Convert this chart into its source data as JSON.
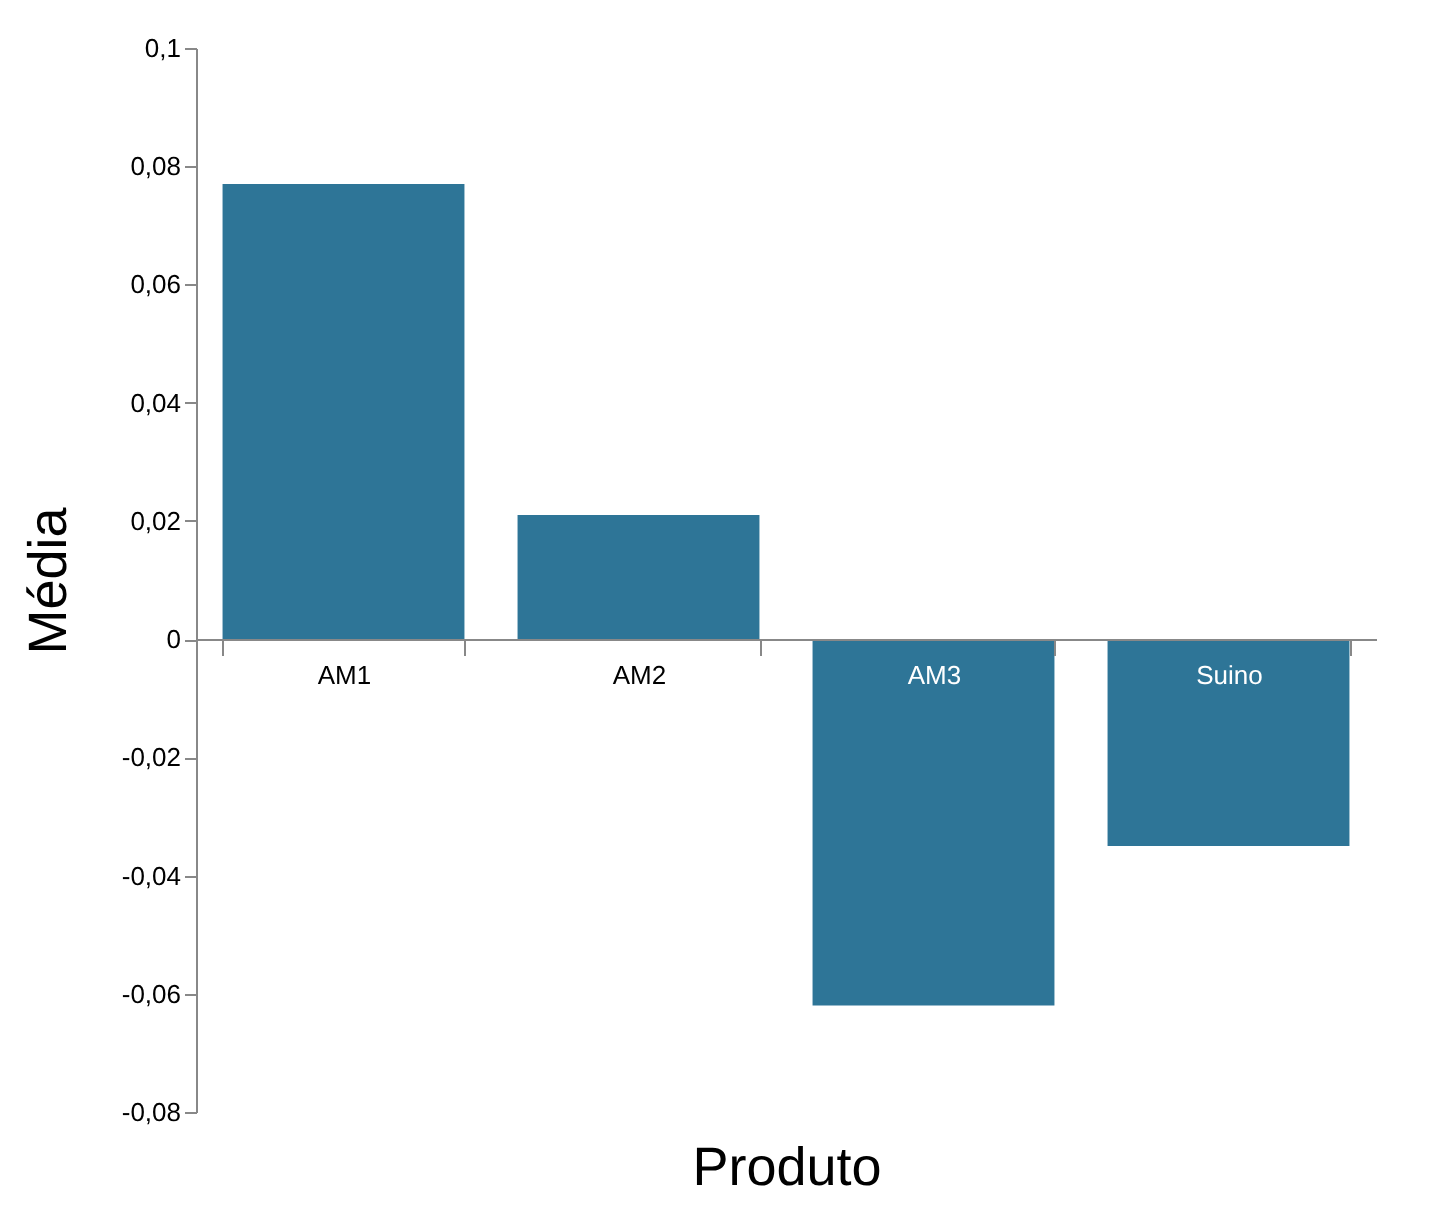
{
  "chart_data": {
    "type": "bar",
    "xlabel": "Produto",
    "ylabel": "Média",
    "categories": [
      "AM1",
      "AM2",
      "AM3",
      "Suino"
    ],
    "values": [
      0.077,
      0.021,
      -0.062,
      -0.035
    ],
    "color": "#2e7597",
    "ylim": [
      -0.08,
      0.1
    ],
    "yticks": [
      {
        "value": -0.08,
        "label": "-0,08"
      },
      {
        "value": -0.06,
        "label": "-0,06"
      },
      {
        "value": -0.04,
        "label": "-0,04"
      },
      {
        "value": -0.02,
        "label": "-0,02"
      },
      {
        "value": 0,
        "label": "0"
      },
      {
        "value": 0.02,
        "label": "0,02"
      },
      {
        "value": 0.04,
        "label": "0,04"
      },
      {
        "value": 0.06,
        "label": "0,06"
      },
      {
        "value": 0.08,
        "label": "0,08"
      },
      {
        "value": 0.1,
        "label": "0,1"
      }
    ],
    "grid": false
  }
}
